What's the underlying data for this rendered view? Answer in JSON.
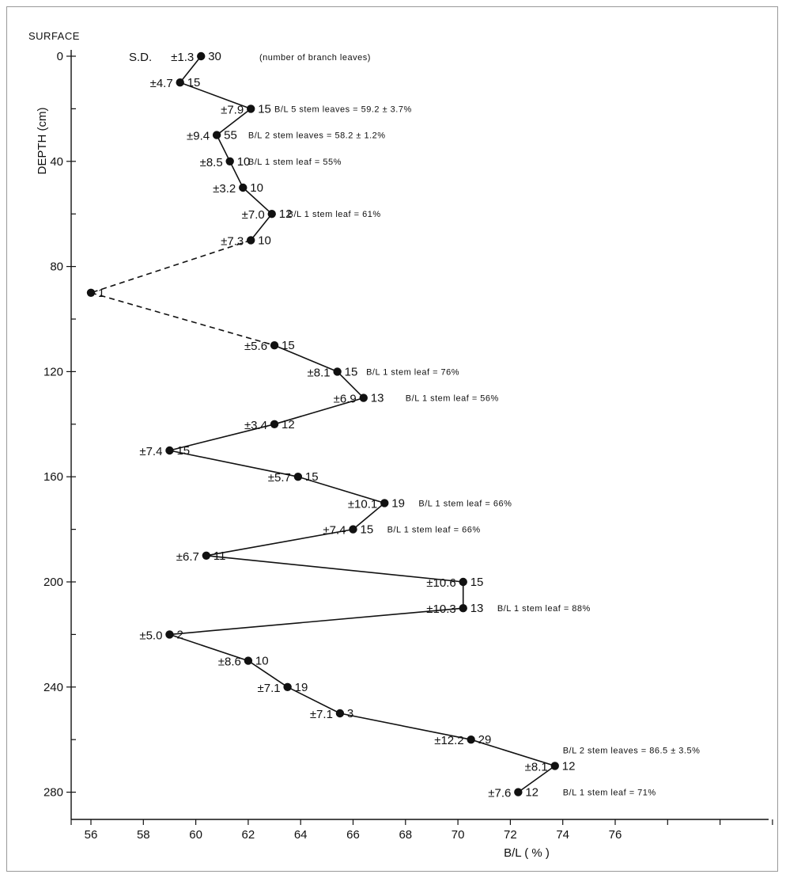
{
  "chart_data": {
    "type": "line",
    "surface_label": "SURFACE",
    "xlabel": "B/L ( % )",
    "ylabel": "DEPTH (cm)",
    "xlim": [
      55,
      78
    ],
    "ylim": [
      0,
      285
    ],
    "y_inverted": true,
    "grid": false,
    "x_ticks": [
      56,
      58,
      60,
      62,
      64,
      66,
      68,
      70,
      72,
      74,
      76
    ],
    "x_minor_ticks": [
      78,
      80,
      82
    ],
    "y_ticks": [
      0,
      40,
      80,
      120,
      160,
      200,
      240,
      280
    ],
    "sd_prefix": "S.D.",
    "count_note": "(number of branch leaves)",
    "points": [
      {
        "x": 60.2,
        "y": 0,
        "sd": "±1.3",
        "n": "30",
        "segment_before": ""
      },
      {
        "x": 59.4,
        "y": 10,
        "sd": "±4.7",
        "n": "15",
        "segment_before": "solid"
      },
      {
        "x": 62.1,
        "y": 20,
        "sd": "±7.9",
        "n": "15",
        "segment_before": "solid"
      },
      {
        "x": 60.8,
        "y": 30,
        "sd": "±9.4",
        "n": "55",
        "segment_before": "solid"
      },
      {
        "x": 61.3,
        "y": 40,
        "sd": "±8.5",
        "n": "10",
        "segment_before": "solid"
      },
      {
        "x": 61.8,
        "y": 50,
        "sd": "±3.2",
        "n": "10",
        "segment_before": "solid"
      },
      {
        "x": 62.9,
        "y": 60,
        "sd": "±7.0",
        "n": "12",
        "segment_before": "solid"
      },
      {
        "x": 62.1,
        "y": 70,
        "sd": "±7.3",
        "n": "10",
        "segment_before": "solid"
      },
      {
        "x": 56.0,
        "y": 90,
        "sd": "",
        "n": "1",
        "segment_before": "dashed"
      },
      {
        "x": 63.0,
        "y": 110,
        "sd": "±5.6",
        "n": "15",
        "segment_before": "dashed"
      },
      {
        "x": 65.4,
        "y": 120,
        "sd": "±8.1",
        "n": "15",
        "segment_before": "solid"
      },
      {
        "x": 66.4,
        "y": 130,
        "sd": "±6.9",
        "n": "13",
        "segment_before": "solid"
      },
      {
        "x": 63.0,
        "y": 140,
        "sd": "±3.4",
        "n": "12",
        "segment_before": "solid"
      },
      {
        "x": 59.0,
        "y": 150,
        "sd": "±7.4",
        "n": "15",
        "segment_before": "solid"
      },
      {
        "x": 63.9,
        "y": 160,
        "sd": "±5.7",
        "n": "15",
        "segment_before": "solid"
      },
      {
        "x": 67.2,
        "y": 170,
        "sd": "±10.1",
        "n": "19",
        "segment_before": "solid"
      },
      {
        "x": 66.0,
        "y": 180,
        "sd": "±7.4",
        "n": "15",
        "segment_before": "solid"
      },
      {
        "x": 60.4,
        "y": 190,
        "sd": "±6.7",
        "n": "11",
        "segment_before": "solid"
      },
      {
        "x": 70.2,
        "y": 200,
        "sd": "±10.6",
        "n": "15",
        "segment_before": "solid"
      },
      {
        "x": 70.2,
        "y": 210,
        "sd": "±10.3",
        "n": "13",
        "segment_before": "solid"
      },
      {
        "x": 59.0,
        "y": 220,
        "sd": "±5.0",
        "n": "2",
        "segment_before": "solid"
      },
      {
        "x": 62.0,
        "y": 230,
        "sd": "±8.6",
        "n": "10",
        "segment_before": "solid"
      },
      {
        "x": 63.5,
        "y": 240,
        "sd": "±7.1",
        "n": "19",
        "segment_before": "solid"
      },
      {
        "x": 65.5,
        "y": 250,
        "sd": "±7.1",
        "n": "3",
        "segment_before": "solid"
      },
      {
        "x": 70.5,
        "y": 260,
        "sd": "±12.2",
        "n": "29",
        "segment_before": "solid"
      },
      {
        "x": 73.7,
        "y": 270,
        "sd": "±8.1",
        "n": "12",
        "segment_before": "solid"
      },
      {
        "x": 72.3,
        "y": 280,
        "sd": "±7.6",
        "n": "12",
        "segment_before": "solid"
      }
    ],
    "annotations": [
      {
        "text": "B/L 5 stem leaves = 59.2 ± 3.7%",
        "depth": 20,
        "x": 63.0
      },
      {
        "text": "B/L 2 stem leaves = 58.2 ± 1.2%",
        "depth": 30,
        "x": 62.0
      },
      {
        "text": "B/L 1 stem leaf = 55%",
        "depth": 40,
        "x": 62.0
      },
      {
        "text": "B/L 1 stem leaf = 61%",
        "depth": 60,
        "x": 63.5
      },
      {
        "text": "B/L 1 stem leaf = 76%",
        "depth": 120,
        "x": 66.5
      },
      {
        "text": "B/L 1 stem leaf = 56%",
        "depth": 130,
        "x": 68.0
      },
      {
        "text": "B/L 1 stem leaf = 66%",
        "depth": 170,
        "x": 68.5
      },
      {
        "text": "B/L 1 stem leaf = 66%",
        "depth": 180,
        "x": 67.3
      },
      {
        "text": "B/L 1 stem leaf = 88%",
        "depth": 210,
        "x": 71.5
      },
      {
        "text": "B/L 2 stem leaves = 86.5 ± 3.5%",
        "depth": 264,
        "x": 74.0
      },
      {
        "text": "B/L 1 stem leaf = 71%",
        "depth": 280,
        "x": 74.0
      }
    ]
  }
}
